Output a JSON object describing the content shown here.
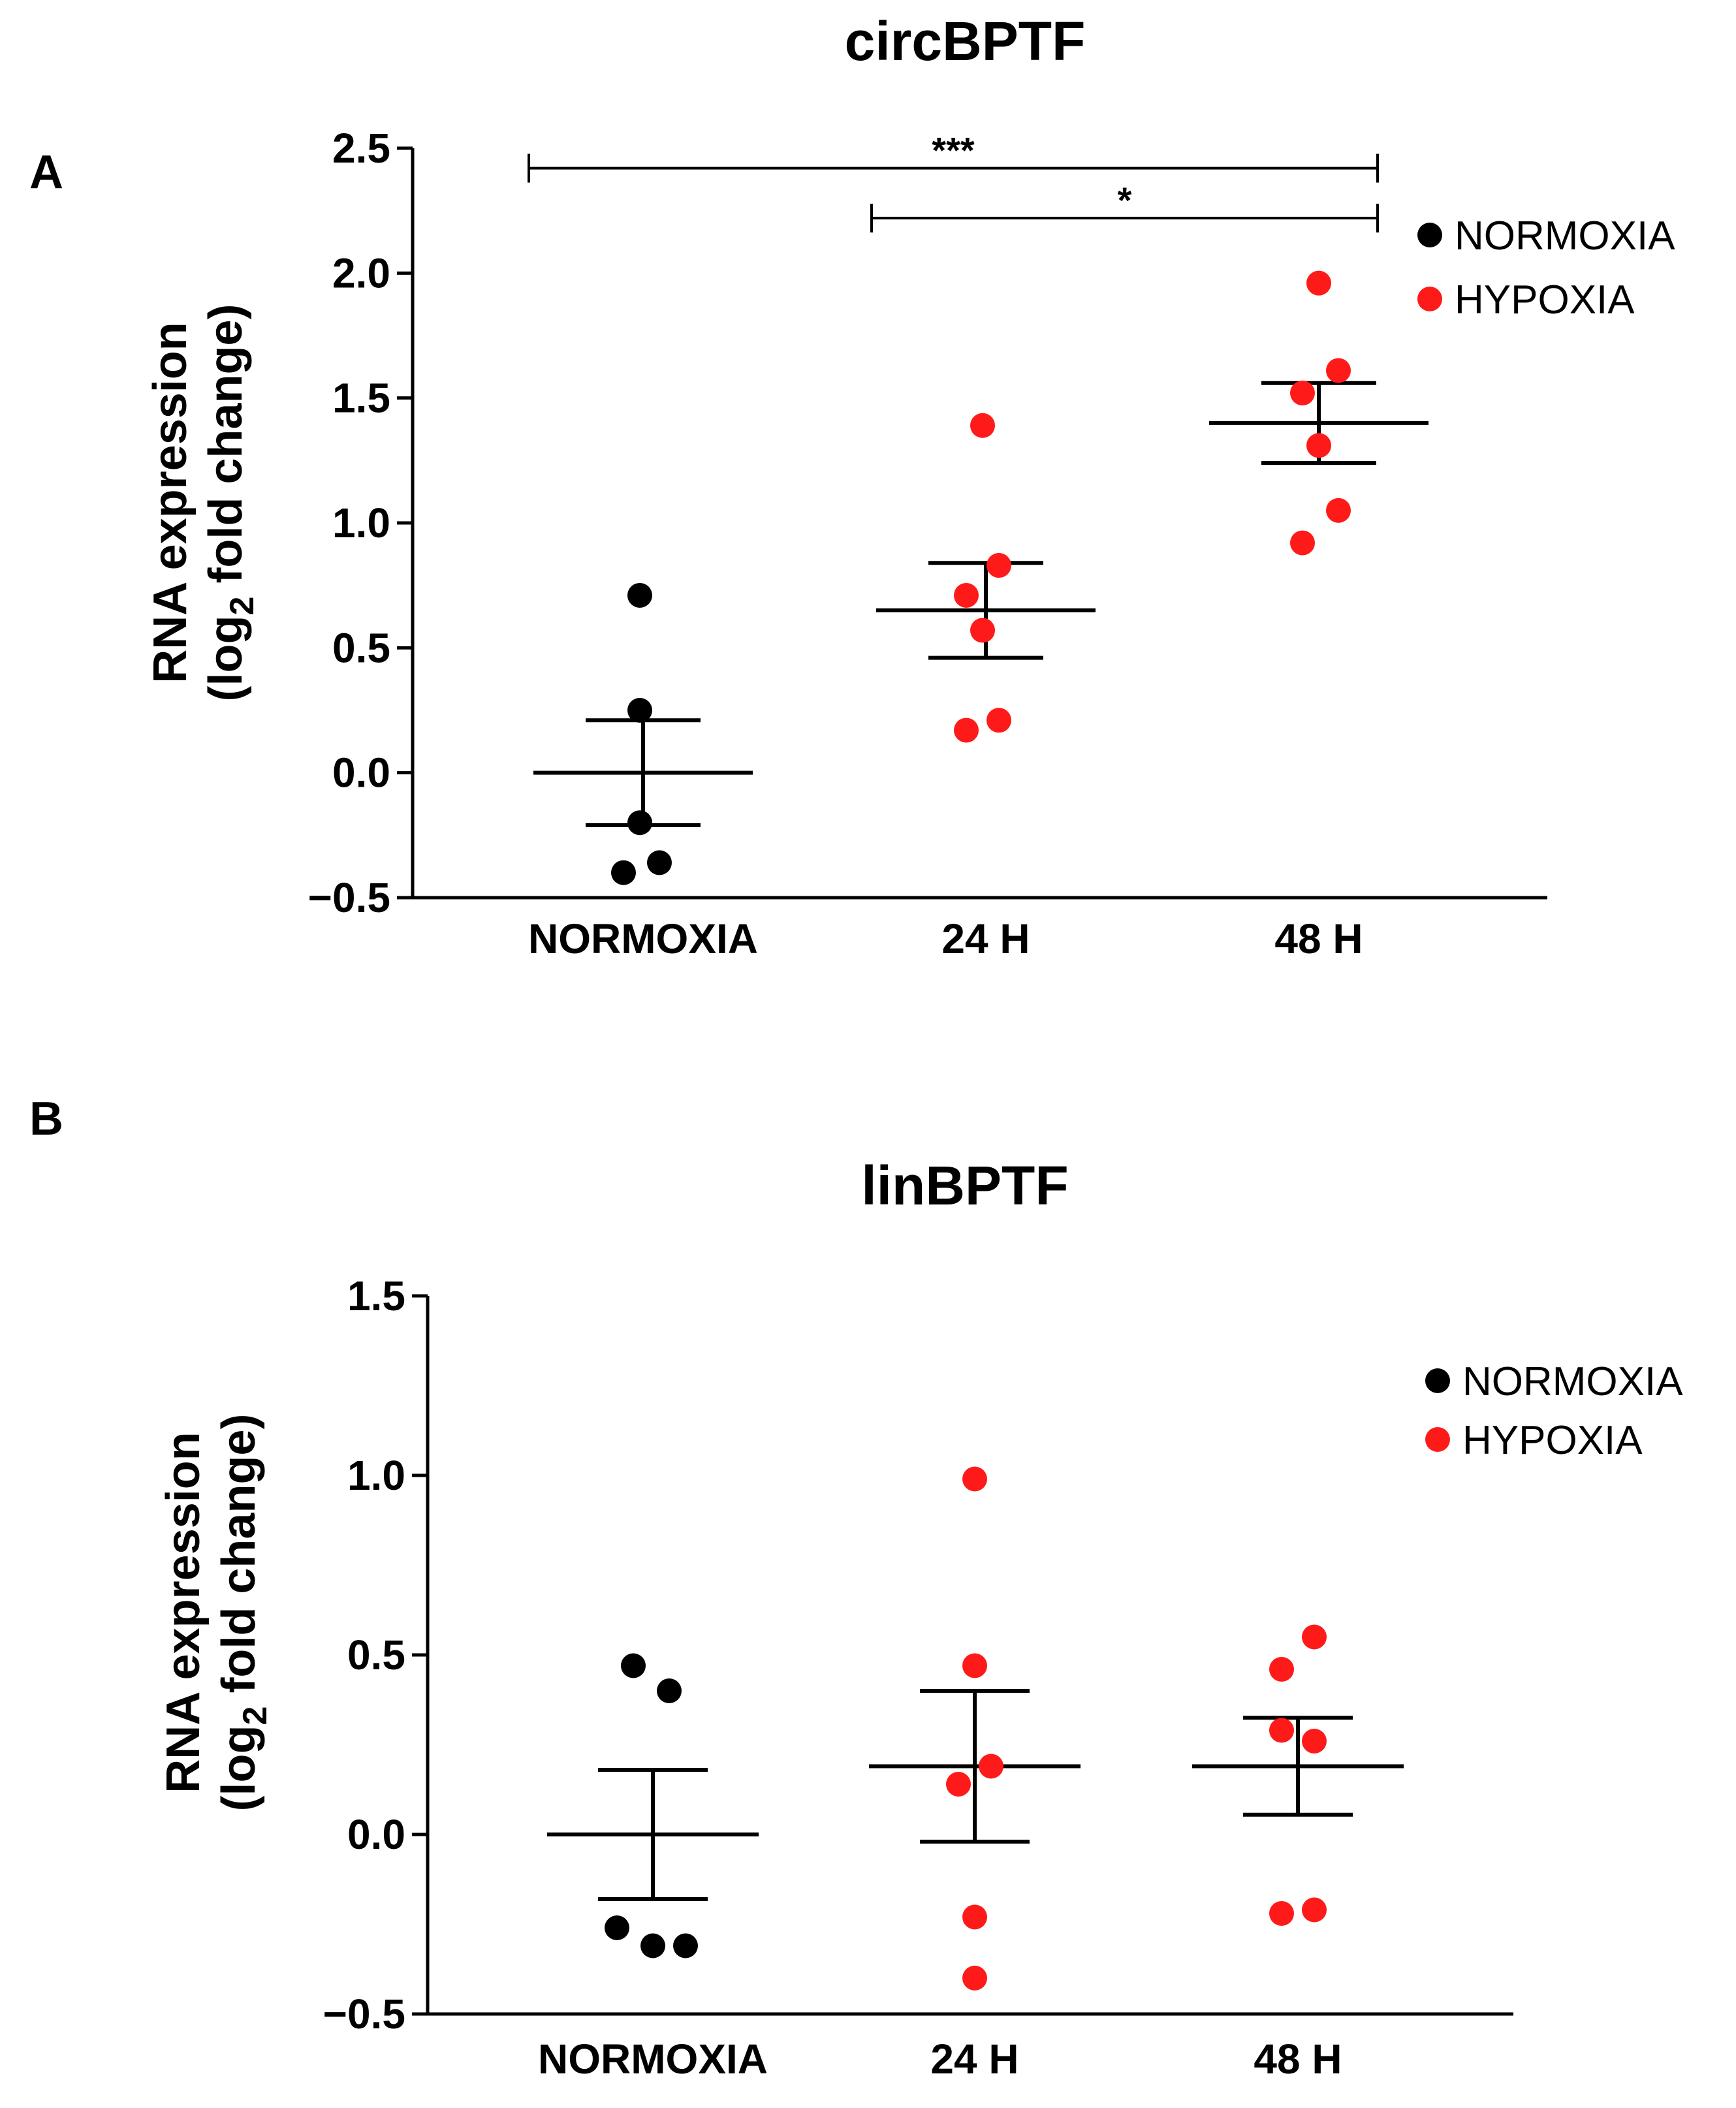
{
  "chart_data": [
    {
      "panel": "A",
      "type": "scatter",
      "title": "circBPTF",
      "ylabel_line1": "RNA expression",
      "ylabel_line2_pre": "(log",
      "ylabel_line2_sub": "2",
      "ylabel_line2_post": " fold change)",
      "ylim": [
        -0.5,
        2.5
      ],
      "yticks": [
        -0.5,
        0.0,
        0.5,
        1.0,
        1.5,
        2.0,
        2.5
      ],
      "ytick_labels": [
        "−0.5",
        "0.0",
        "0.5",
        "1.0",
        "1.5",
        "2.0",
        "2.5"
      ],
      "categories": [
        "NORMOXIA",
        "24 H",
        "48 H"
      ],
      "groups": [
        {
          "category": "NORMOXIA",
          "condition": "NORMOXIA",
          "color": "#000000",
          "mean": 0.0,
          "sem": 0.21,
          "points": [
            [
              -0.01,
              0.71
            ],
            [
              -0.01,
              0.25
            ],
            [
              -0.01,
              -0.2
            ],
            [
              -0.06,
              -0.4
            ],
            [
              0.05,
              -0.36
            ]
          ]
        },
        {
          "category": "24 H",
          "condition": "HYPOXIA",
          "color": "#ff1a1a",
          "mean": 0.65,
          "sem": 0.19,
          "points": [
            [
              -0.01,
              1.39
            ],
            [
              0.04,
              0.83
            ],
            [
              -0.06,
              0.71
            ],
            [
              -0.01,
              0.57
            ],
            [
              0.04,
              0.21
            ],
            [
              -0.06,
              0.17
            ]
          ]
        },
        {
          "category": "48 H",
          "condition": "HYPOXIA",
          "color": "#ff1a1a",
          "mean": 1.4,
          "sem": 0.16,
          "points": [
            [
              0.0,
              1.96
            ],
            [
              0.06,
              1.61
            ],
            [
              -0.05,
              1.52
            ],
            [
              0.0,
              1.31
            ],
            [
              0.06,
              1.05
            ],
            [
              -0.05,
              0.92
            ]
          ]
        }
      ],
      "significance": [
        {
          "from": "NORMOXIA",
          "to": "48 H",
          "label": "***",
          "y": 2.42
        },
        {
          "from": "24 H",
          "to": "48 H",
          "label": "*",
          "y": 2.22
        }
      ],
      "legend": [
        {
          "label": "NORMOXIA",
          "color": "#000000"
        },
        {
          "label": "HYPOXIA",
          "color": "#ff1a1a"
        }
      ]
    },
    {
      "panel": "B",
      "type": "scatter",
      "title": "linBPTF",
      "ylabel_line1": "RNA expression",
      "ylabel_line2_pre": "(log",
      "ylabel_line2_sub": "2",
      "ylabel_line2_post": " fold change)",
      "ylim": [
        -0.5,
        1.5
      ],
      "yticks": [
        -0.5,
        0.0,
        0.5,
        1.0,
        1.5
      ],
      "ytick_labels": [
        "−0.5",
        "0.0",
        "0.5",
        "1.0",
        "1.5"
      ],
      "categories": [
        "NORMOXIA",
        "24 H",
        "48 H"
      ],
      "groups": [
        {
          "category": "NORMOXIA",
          "condition": "NORMOXIA",
          "color": "#000000",
          "mean": 0.0,
          "sem": 0.18,
          "points": [
            [
              -0.06,
              0.47
            ],
            [
              0.05,
              0.4
            ],
            [
              -0.11,
              -0.26
            ],
            [
              0.0,
              -0.31
            ],
            [
              0.1,
              -0.31
            ]
          ]
        },
        {
          "category": "24 H",
          "condition": "HYPOXIA",
          "color": "#ff1a1a",
          "mean": 0.19,
          "sem": 0.21,
          "points": [
            [
              0.0,
              0.99
            ],
            [
              0.0,
              0.47
            ],
            [
              0.05,
              0.19
            ],
            [
              -0.05,
              0.14
            ],
            [
              0.0,
              -0.23
            ],
            [
              0.0,
              -0.4
            ]
          ]
        },
        {
          "category": "48 H",
          "condition": "HYPOXIA",
          "color": "#ff1a1a",
          "mean": 0.19,
          "sem": 0.135,
          "points": [
            [
              0.05,
              0.55
            ],
            [
              -0.05,
              0.46
            ],
            [
              -0.05,
              0.29
            ],
            [
              0.05,
              0.26
            ],
            [
              -0.05,
              -0.22
            ],
            [
              0.05,
              -0.21
            ]
          ]
        }
      ],
      "significance": [],
      "legend": [
        {
          "label": "NORMOXIA",
          "color": "#000000"
        },
        {
          "label": "HYPOXIA",
          "color": "#ff1a1a"
        }
      ]
    }
  ]
}
